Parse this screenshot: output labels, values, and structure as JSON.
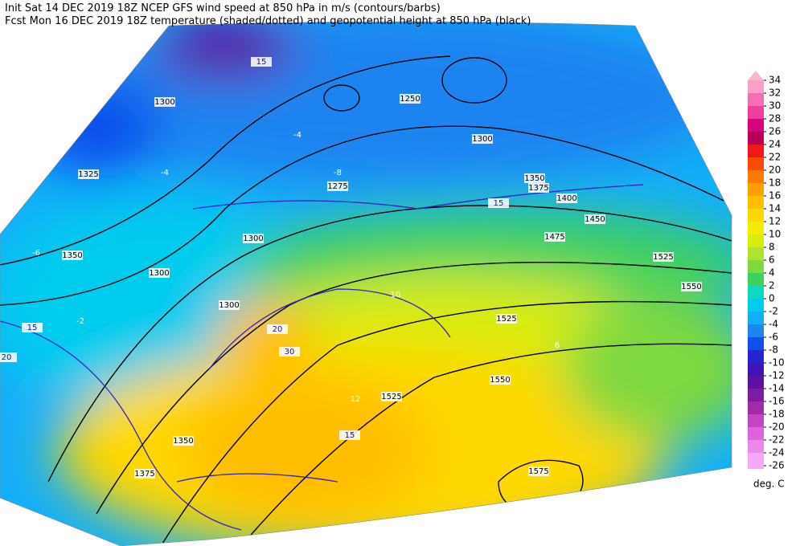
{
  "header": {
    "lines": [
      "Init  Sat 14 DEC 2019 18Z   NCEP GFS wind speed at 850 hPa in m/s (contours/barbs)",
      "Fcst Mon 16 DEC 2019 18Z  temperature (shaded/dotted) and geopotential height at 850 hPa (black)"
    ]
  },
  "colorbar": {
    "ticks": [
      34,
      32,
      30,
      28,
      26,
      24,
      22,
      20,
      18,
      16,
      14,
      12,
      10,
      8,
      6,
      4,
      2,
      0,
      -2,
      -4,
      -6,
      -8,
      -10,
      -12,
      -14,
      -16,
      -18,
      -20,
      -22,
      -24,
      -26
    ],
    "colors": [
      "#f8b8c8",
      "#f9a0c8",
      "#f46fb4",
      "#ee3e9e",
      "#d7047f",
      "#b50056",
      "#f01818",
      "#ff4a00",
      "#ff7a00",
      "#ffa000",
      "#ffbe00",
      "#ffd800",
      "#f4ec00",
      "#d8ec10",
      "#b0e232",
      "#7ed840",
      "#40d060",
      "#10d8c0",
      "#00ccee",
      "#14aef8",
      "#1e84f0",
      "#1050ec",
      "#2424d0",
      "#4014b4",
      "#5c10a4",
      "#7c1ca4",
      "#a02ca8",
      "#c446c4",
      "#dc64dc",
      "#ec88ec",
      "#f6aaf6"
    ],
    "unit": "deg. C"
  },
  "map": {
    "labels": [
      "1250",
      "1275",
      "1300",
      "1300",
      "1300",
      "1300",
      "1300",
      "1325",
      "1350",
      "1350",
      "1350",
      "1375",
      "1400",
      "1450",
      "1475",
      "1525",
      "1525",
      "1525",
      "1550",
      "1550",
      "1575",
      "1375",
      "15",
      "15",
      "15",
      "20",
      "20",
      "30",
      "15",
      "-4",
      "-6",
      "-8",
      "-2",
      "10",
      "12",
      "6",
      "-4"
    ]
  }
}
